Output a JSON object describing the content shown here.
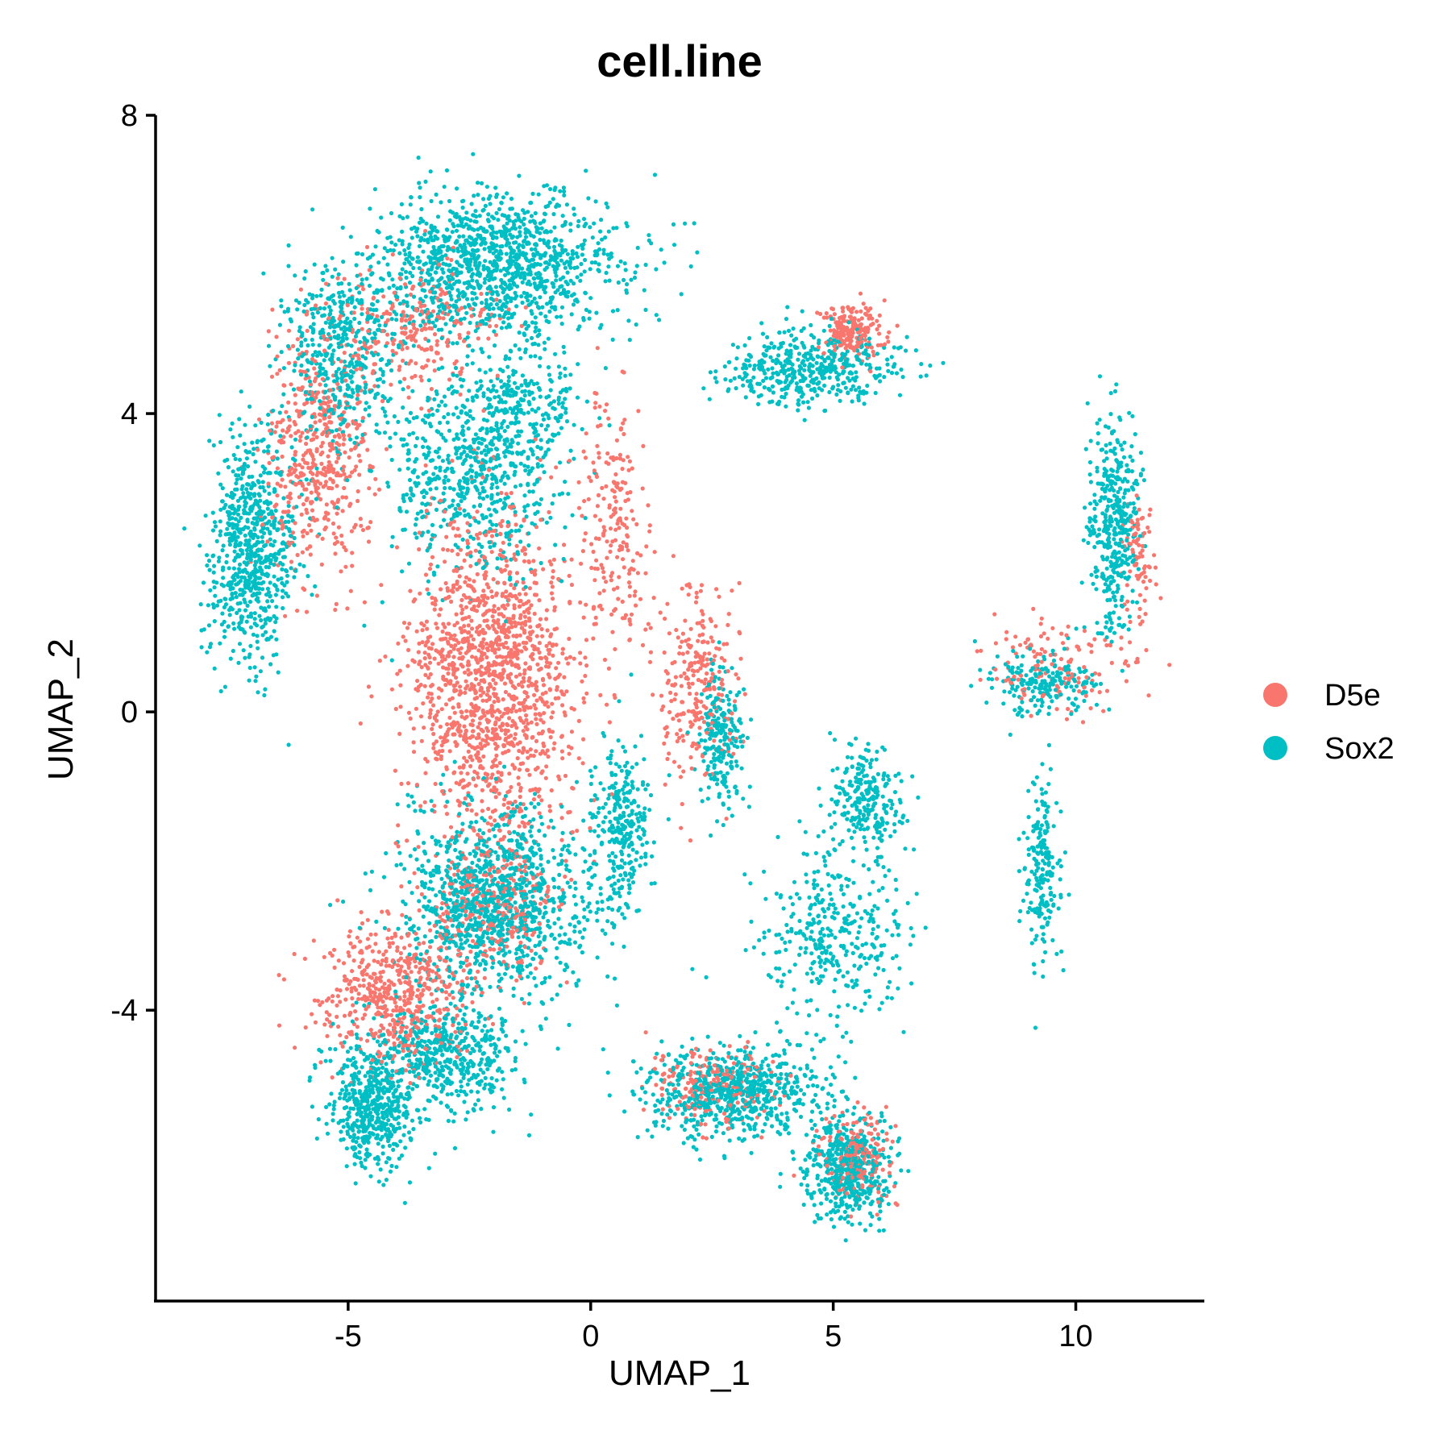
{
  "chart_data": {
    "type": "scatter",
    "title": "cell.line",
    "xlabel": "UMAP_1",
    "ylabel": "UMAP_2",
    "xlim": [
      -8.97,
      12.65
    ],
    "ylim": [
      -7.9,
      8.0
    ],
    "xticks": [
      -5,
      0,
      5,
      10
    ],
    "yticks": [
      -4,
      0,
      4,
      8
    ],
    "xtick_labels": [
      "-5",
      "0",
      "5",
      "10"
    ],
    "ytick_labels": [
      "-4",
      "0",
      "4",
      "8"
    ],
    "grid": false,
    "legend": {
      "position": "right"
    },
    "series": [
      {
        "name": "D5e",
        "color": "#F8766D",
        "regions": [
          {
            "cx": -2.0,
            "cy": 0.5,
            "sx": 1.4,
            "sy": 1.8,
            "n": 1400
          },
          {
            "cx": -5.6,
            "cy": 3.5,
            "sx": 0.9,
            "sy": 1.4,
            "n": 500
          },
          {
            "cx": -3.5,
            "cy": 5.2,
            "sx": 1.2,
            "sy": 0.7,
            "n": 250
          },
          {
            "cx": -4.0,
            "cy": -3.8,
            "sx": 1.2,
            "sy": 0.8,
            "n": 550
          },
          {
            "cx": 2.2,
            "cy": 0.3,
            "sx": 0.7,
            "sy": 1.2,
            "n": 250
          },
          {
            "cx": 2.5,
            "cy": -5.0,
            "sx": 1.0,
            "sy": 0.4,
            "n": 200
          },
          {
            "cx": 5.5,
            "cy": -6.0,
            "sx": 0.6,
            "sy": 0.5,
            "n": 200
          },
          {
            "cx": 5.4,
            "cy": 5.1,
            "sx": 0.5,
            "sy": 0.3,
            "n": 200
          },
          {
            "cx": 9.5,
            "cy": 0.6,
            "sx": 1.2,
            "sy": 0.5,
            "n": 130
          },
          {
            "cx": 11.3,
            "cy": 2.0,
            "sx": 0.3,
            "sy": 0.9,
            "n": 80
          },
          {
            "cx": 0.5,
            "cy": 2.5,
            "sx": 0.6,
            "sy": 1.5,
            "n": 200
          },
          {
            "cx": -2.0,
            "cy": -2.6,
            "sx": 1.2,
            "sy": 0.8,
            "n": 300
          }
        ]
      },
      {
        "name": "Sox2",
        "color": "#00BFC4",
        "regions": [
          {
            "cx": -2.0,
            "cy": 6.0,
            "sx": 2.2,
            "sy": 0.8,
            "n": 1200
          },
          {
            "cx": -7.0,
            "cy": 2.2,
            "sx": 0.7,
            "sy": 1.2,
            "n": 700
          },
          {
            "cx": -5.2,
            "cy": 4.8,
            "sx": 1.0,
            "sy": 1.0,
            "n": 450
          },
          {
            "cx": -2.5,
            "cy": 3.2,
            "sx": 1.5,
            "sy": 1.2,
            "n": 600
          },
          {
            "cx": -2.0,
            "cy": -2.5,
            "sx": 1.5,
            "sy": 1.0,
            "n": 1100
          },
          {
            "cx": -4.5,
            "cy": -5.3,
            "sx": 0.7,
            "sy": 0.7,
            "n": 500
          },
          {
            "cx": -3.0,
            "cy": -4.6,
            "sx": 1.2,
            "sy": 0.6,
            "n": 500
          },
          {
            "cx": 3.0,
            "cy": -5.1,
            "sx": 1.5,
            "sy": 0.5,
            "n": 700
          },
          {
            "cx": 5.3,
            "cy": -6.1,
            "sx": 0.7,
            "sy": 0.6,
            "n": 500
          },
          {
            "cx": 5.0,
            "cy": -3.0,
            "sx": 1.2,
            "sy": 1.0,
            "n": 350
          },
          {
            "cx": 4.5,
            "cy": 4.6,
            "sx": 1.5,
            "sy": 0.4,
            "n": 450
          },
          {
            "cx": 9.3,
            "cy": 0.4,
            "sx": 1.0,
            "sy": 0.4,
            "n": 200
          },
          {
            "cx": 10.8,
            "cy": 2.5,
            "sx": 0.4,
            "sy": 1.2,
            "n": 400
          },
          {
            "cx": 9.3,
            "cy": -2.0,
            "sx": 0.3,
            "sy": 1.0,
            "n": 200
          },
          {
            "cx": 0.6,
            "cy": -1.6,
            "sx": 0.5,
            "sy": 1.0,
            "n": 300
          },
          {
            "cx": 2.7,
            "cy": -0.4,
            "sx": 0.4,
            "sy": 0.8,
            "n": 220
          },
          {
            "cx": 5.7,
            "cy": -1.2,
            "sx": 0.6,
            "sy": 0.6,
            "n": 250
          },
          {
            "cx": -1.4,
            "cy": 4.0,
            "sx": 1.0,
            "sy": 0.8,
            "n": 250
          }
        ]
      }
    ]
  }
}
